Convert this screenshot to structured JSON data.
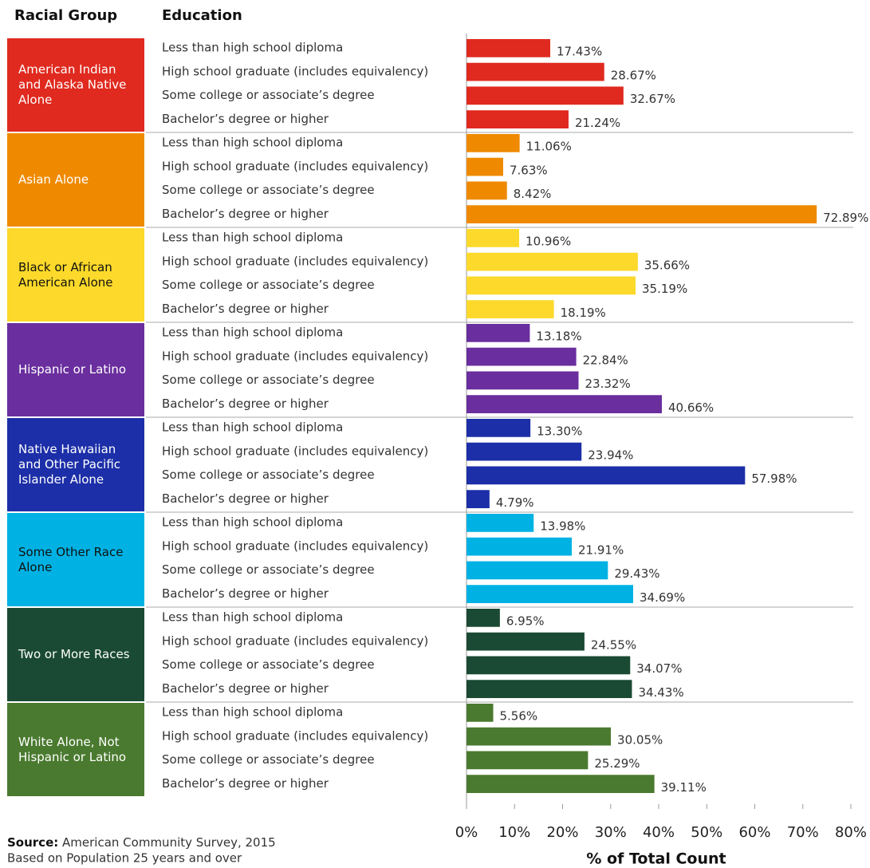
{
  "chart_data": {
    "type": "bar",
    "group_header": "Racial Group",
    "category_header": "Education",
    "categories": [
      "Less than high school diploma",
      "High school graduate (includes equivalency)",
      "Some college or associate’s degree",
      "Bachelor’s degree or higher"
    ],
    "series": [
      {
        "name": "American Indian and Alaska Native Alone",
        "color": "#e02a1f",
        "text_color": "#ffffff",
        "values": [
          17.43,
          28.67,
          32.67,
          21.24
        ],
        "value_labels": [
          "17.43%",
          "28.67%",
          "32.67%",
          "21.24%"
        ]
      },
      {
        "name": "Asian Alone",
        "color": "#ef8a00",
        "text_color": "#ffffff",
        "values": [
          11.06,
          7.63,
          8.42,
          72.89
        ],
        "value_labels": [
          "11.06%",
          "7.63%",
          "8.42%",
          "72.89%"
        ]
      },
      {
        "name": "Black or African American Alone",
        "color": "#fcd92a",
        "text_color": "#111111",
        "values": [
          10.96,
          35.66,
          35.19,
          18.19
        ],
        "value_labels": [
          "10.96%",
          "35.66%",
          "35.19%",
          "18.19%"
        ]
      },
      {
        "name": "Hispanic or Latino",
        "color": "#6a2e9e",
        "text_color": "#ffffff",
        "values": [
          13.18,
          22.84,
          23.32,
          40.66
        ],
        "value_labels": [
          "13.18%",
          "22.84%",
          "23.32%",
          "40.66%"
        ]
      },
      {
        "name": "Native Hawaiian and Other Pacific Islander Alone",
        "color": "#1c2fa8",
        "text_color": "#ffffff",
        "values": [
          13.3,
          23.94,
          57.98,
          4.79
        ],
        "value_labels": [
          "13.30%",
          "23.94%",
          "57.98%",
          "4.79%"
        ]
      },
      {
        "name": "Some Other Race Alone",
        "color": "#00b2e3",
        "text_color": "#111111",
        "values": [
          13.98,
          21.91,
          29.43,
          34.69
        ],
        "value_labels": [
          "13.98%",
          "21.91%",
          "29.43%",
          "34.69%"
        ]
      },
      {
        "name": "Two or More Races",
        "color": "#1a4a33",
        "text_color": "#ffffff",
        "values": [
          6.95,
          24.55,
          34.07,
          34.43
        ],
        "value_labels": [
          "6.95%",
          "24.55%",
          "34.07%",
          "34.43%"
        ]
      },
      {
        "name": "White Alone, Not Hispanic or Latino",
        "color": "#4a7a2f",
        "text_color": "#ffffff",
        "values": [
          5.56,
          30.05,
          25.29,
          39.11
        ],
        "value_labels": [
          "5.56%",
          "30.05%",
          "25.29%",
          "39.11%"
        ]
      }
    ],
    "xlim": [
      0,
      80
    ],
    "xticks": [
      {
        "value": 0,
        "label": "0%"
      },
      {
        "value": 10,
        "label": "10%"
      },
      {
        "value": 20,
        "label": "20%"
      },
      {
        "value": 30,
        "label": "30%"
      },
      {
        "value": 40,
        "label": "40%"
      },
      {
        "value": 50,
        "label": "50%"
      },
      {
        "value": 60,
        "label": "60%"
      },
      {
        "value": 70,
        "label": "70%"
      },
      {
        "value": 80,
        "label": "80%"
      }
    ],
    "xlabel": "% of Total Count",
    "source_label": "Source:",
    "source": "American Community Survey, 2015",
    "note": "Based on Population 25 years and over"
  }
}
